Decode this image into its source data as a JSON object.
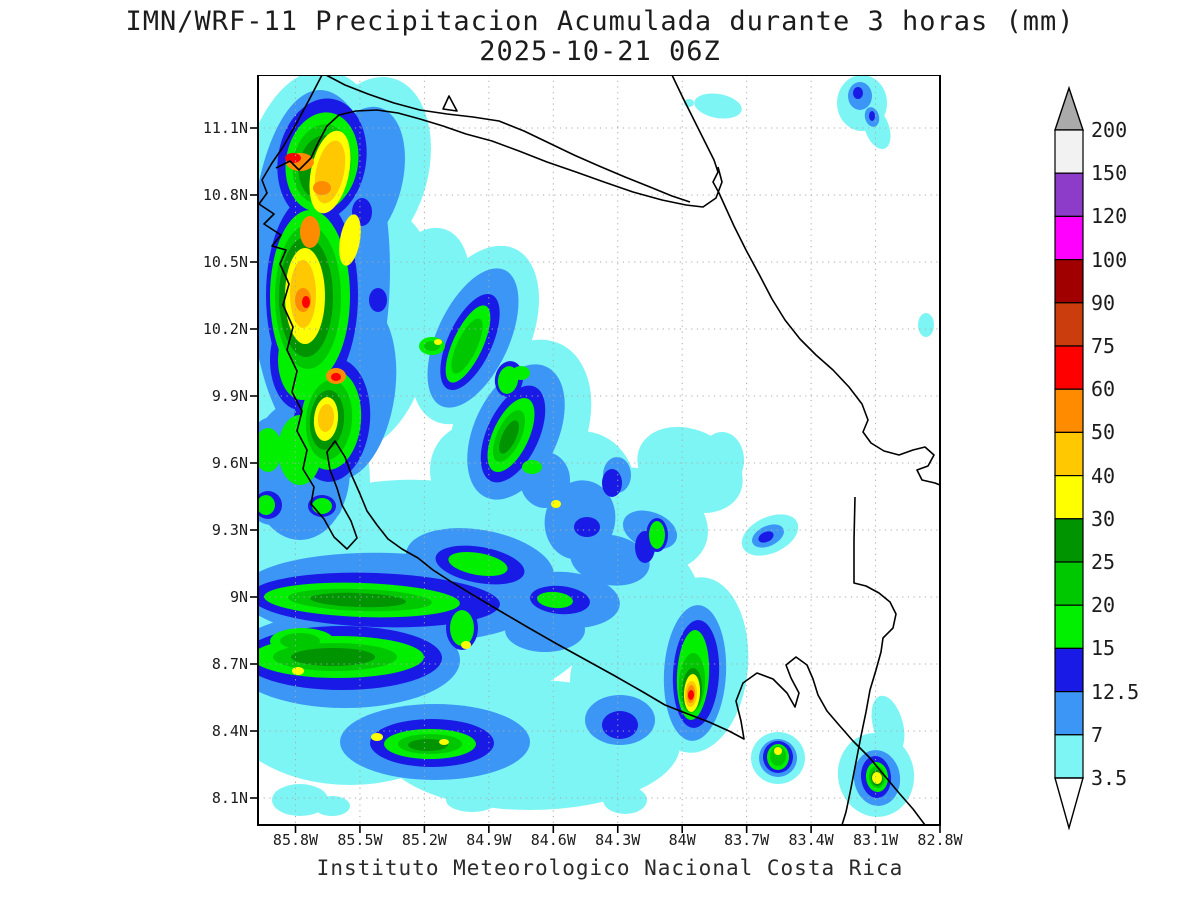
{
  "title": {
    "line1": "IMN/WRF-11 Precipitacion Acumulada durante 3 horas (mm)",
    "line2": "2025-10-21 06Z"
  },
  "footer": "Instituto Meteorologico Nacional Costa Rica",
  "axes": {
    "lat_ticks": [
      "11.1N",
      "10.8N",
      "10.5N",
      "10.2N",
      "9.9N",
      "9.6N",
      "9.3N",
      "9N",
      "8.7N",
      "8.4N",
      "8.1N"
    ],
    "lon_ticks": [
      "85.8W",
      "85.5W",
      "85.2W",
      "84.9W",
      "84.6W",
      "84.3W",
      "84W",
      "83.7W",
      "83.4W",
      "83.1W",
      "82.8W"
    ]
  },
  "colorbar": {
    "labels": [
      "200",
      "150",
      "120",
      "100",
      "90",
      "75",
      "60",
      "50",
      "40",
      "30",
      "25",
      "20",
      "15",
      "12.5",
      "7",
      "3.5"
    ],
    "cell_colors": [
      "#F2F2F2",
      "#8C3CC8",
      "#FF00FF",
      "#A00000",
      "#CC3D0E",
      "#FF0000",
      "#FF8C00",
      "#FFC800",
      "#FFFF00",
      "#009400",
      "#00C800",
      "#00F000",
      "#1A1AE6",
      "#3C96F5",
      "#7DF5F5"
    ],
    "arrow_top_color": "#AAAAAA",
    "arrow_bottom_color": "#FFFFFF",
    "units": "mm"
  },
  "map": {
    "background": "#FFFFFF",
    "coast_color": "#000000",
    "grid_color": "#AAAAAA",
    "palette_order": [
      "p3_5",
      "p7",
      "p12_5",
      "p15",
      "p20",
      "p25",
      "p30",
      "p40",
      "p50",
      "p60"
    ],
    "palette": {
      "p3_5": "#7DF5F5",
      "p7": "#3C96F5",
      "p12_5": "#1A1AE6",
      "p15": "#00F000",
      "p20": "#00C800",
      "p25": "#009400",
      "p30": "#FFFF00",
      "p40": "#FFC800",
      "p50": "#FF8C00",
      "p60": "#FF0000"
    },
    "coastlines": [
      "M 322,75 L 309,100 L 295,126 L 283,147 L 272,163 L 262,180 L 267,193 L 259,204 L 274,214 L 264,224 L 281,235 L 272,246 L 286,250 L 280,264 L 289,284 L 283,305 L 293,327 L 287,350 L 297,371 L 292,392 L 302,411 L 297,431 L 307,450 L 303,469 L 314,487 L 311,504 L 324,519 L 334,537 L 347,549 L 357,538 L 351,521 L 342,505 L 337,488 L 330,470 L 327,452 L 335,441 L 345,457 L 352,476 L 360,494 L 367,511 L 377,525 L 388,539 L 402,549 L 418,558 L 433,570 L 450,581 L 473,595 L 500,611 L 529,628 L 557,644 L 586,660 L 615,676 L 643,692 L 665,705 L 688,714 L 709,722 L 729,731 L 744,739 L 741,721 L 736,701 L 743,683 L 757,673 L 773,679 L 787,693 L 795,707 L 799,693 L 791,678 L 786,665 L 796,657 L 807,665 L 813,679 L 818,695 L 827,711 L 839,725 L 853,741 L 869,757 L 884,775 L 899,793 L 913,809 L 925,825",
      "M 276,168 L 290,161 L 299,170 L 311,158 L 318,143 L 327,126 L 339,115 L 356,111 L 377,110 L 398,113 L 420,119 L 443,126 L 466,134 L 492,141 L 519,151 L 547,162 L 576,172 L 604,182 L 633,192 L 662,200 L 686,205 L 703,207 L 716,198 L 722,182 L 718,167",
      "M 326,75 L 345,85 L 368,94 L 394,103 L 420,110 L 447,114 L 473,117 L 499,121 L 524,131 L 549,143 L 574,155 L 599,166 L 625,177 L 650,187 L 672,196 L 690,202",
      "M 672,75 L 683,98 L 695,122 L 706,144 L 714,160 L 718,172 L 713,182 L 719,193 L 724,204 L 734,226 L 746,250 L 760,276 L 772,299 L 785,320 L 800,339 L 816,355 L 833,370 L 849,387 L 862,404 L 868,420 L 863,432 L 871,443 L 884,451 L 899,455 L 913,450 L 925,447 L 934,455 L 928,466 L 917,470 L 922,480 L 935,483 L 940,485",
      "M 855,497 L 854,540 L 854,583 L 866,586 L 879,593 L 890,602 L 896,614 L 893,628 L 883,638 L 881,652 L 876,670 L 870,690 L 866,712 L 861,736 L 856,762 L 851,788 L 846,812 L 842,825",
      "M 449,96 L 457,111 L 443,109 Z"
    ],
    "blobs": [
      [
        "p3_5",
        322,
        265,
        92,
        195,
        0
      ],
      [
        "p3_5",
        368,
        170,
        60,
        95,
        15
      ],
      [
        "p3_5",
        372,
        330,
        62,
        120,
        10
      ],
      [
        "p3_5",
        300,
        480,
        70,
        90,
        0
      ],
      [
        "p3_5",
        420,
        300,
        45,
        75,
        20
      ],
      [
        "p3_5",
        475,
        335,
        55,
        95,
        25
      ],
      [
        "p3_5",
        520,
        430,
        65,
        95,
        25
      ],
      [
        "p3_5",
        575,
        500,
        60,
        70,
        20
      ],
      [
        "p3_5",
        470,
        470,
        40,
        45,
        0
      ],
      [
        "p3_5",
        722,
        460,
        22,
        28,
        0
      ],
      [
        "p3_5",
        420,
        595,
        185,
        115,
        3
      ],
      [
        "p3_5",
        350,
        700,
        130,
        85,
        0
      ],
      [
        "p3_5",
        560,
        570,
        100,
        70,
        10
      ],
      [
        "p3_5",
        640,
        520,
        70,
        50,
        20
      ],
      [
        "p3_5",
        690,
        470,
        55,
        40,
        25
      ],
      [
        "p3_5",
        530,
        745,
        150,
        65,
        0
      ],
      [
        "p3_5",
        640,
        680,
        70,
        60,
        0
      ],
      [
        "p3_5",
        625,
        800,
        22,
        14,
        0
      ],
      [
        "p3_5",
        300,
        800,
        28,
        16,
        0
      ],
      [
        "p3_5",
        332,
        806,
        18,
        10,
        0
      ],
      [
        "p3_5",
        472,
        800,
        26,
        12,
        0
      ],
      [
        "p3_5",
        520,
        795,
        30,
        14,
        0
      ],
      [
        "p3_5",
        696,
        665,
        52,
        88,
        5
      ],
      [
        "p3_5",
        655,
        600,
        45,
        55,
        -10
      ],
      [
        "p3_5",
        778,
        758,
        27,
        26,
        0
      ],
      [
        "p3_5",
        876,
        775,
        38,
        42,
        -10
      ],
      [
        "p3_5",
        888,
        725,
        15,
        30,
        -15
      ],
      [
        "p3_5",
        770,
        535,
        30,
        18,
        -25
      ],
      [
        "p3_5",
        718,
        106,
        24,
        12,
        10
      ],
      [
        "p3_5",
        689,
        103,
        5,
        4,
        0
      ],
      [
        "p3_5",
        862,
        103,
        25,
        28,
        0
      ],
      [
        "p3_5",
        877,
        128,
        12,
        22,
        -20
      ],
      [
        "p3_5",
        926,
        325,
        8,
        12,
        0
      ],
      [
        "p3_5",
        280,
        505,
        40,
        30,
        0
      ],
      [
        "p7",
        320,
        270,
        70,
        180,
        0
      ],
      [
        "p7",
        360,
        180,
        42,
        75,
        15
      ],
      [
        "p7",
        350,
        390,
        45,
        90,
        8
      ],
      [
        "p7",
        300,
        470,
        50,
        70,
        0
      ],
      [
        "p7",
        473,
        338,
        36,
        75,
        25
      ],
      [
        "p7",
        516,
        432,
        42,
        72,
        25
      ],
      [
        "p7",
        580,
        520,
        35,
        40,
        15
      ],
      [
        "p7",
        545,
        480,
        25,
        28,
        0
      ],
      [
        "p7",
        617,
        475,
        14,
        18,
        0
      ],
      [
        "p7",
        390,
        598,
        150,
        45,
        2
      ],
      [
        "p7",
        345,
        660,
        115,
        48,
        0
      ],
      [
        "p7",
        480,
        565,
        75,
        35,
        10
      ],
      [
        "p7",
        565,
        600,
        55,
        28,
        5
      ],
      [
        "p7",
        435,
        742,
        95,
        38,
        0
      ],
      [
        "p7",
        610,
        560,
        40,
        25,
        10
      ],
      [
        "p7",
        650,
        530,
        28,
        18,
        20
      ],
      [
        "p7",
        545,
        630,
        40,
        22,
        0
      ],
      [
        "p7",
        620,
        720,
        35,
        25,
        0
      ],
      [
        "p7",
        695,
        673,
        31,
        68,
        3
      ],
      [
        "p7",
        778,
        758,
        19,
        19,
        0
      ],
      [
        "p7",
        877,
        778,
        23,
        28,
        -8
      ],
      [
        "p7",
        768,
        536,
        17,
        10,
        -25
      ],
      [
        "p7",
        860,
        96,
        12,
        14,
        0
      ],
      [
        "p7",
        872,
        117,
        7,
        10,
        -15
      ],
      [
        "p7",
        272,
        505,
        22,
        20,
        0
      ],
      [
        "p7",
        322,
        506,
        20,
        16,
        0
      ],
      [
        "p7",
        272,
        452,
        25,
        35,
        0
      ],
      [
        "p12_5",
        322,
        160,
        44,
        62,
        10
      ],
      [
        "p12_5",
        312,
        295,
        46,
        100,
        0
      ],
      [
        "p12_5",
        332,
        420,
        38,
        62,
        5
      ],
      [
        "p12_5",
        300,
        360,
        30,
        50,
        0
      ],
      [
        "p12_5",
        362,
        212,
        10,
        14,
        0
      ],
      [
        "p12_5",
        378,
        300,
        9,
        12,
        0
      ],
      [
        "p12_5",
        347,
        440,
        8,
        10,
        0
      ],
      [
        "p12_5",
        322,
        218,
        9,
        8,
        0
      ],
      [
        "p12_5",
        470,
        342,
        22,
        52,
        25
      ],
      [
        "p12_5",
        513,
        434,
        26,
        52,
        25
      ],
      [
        "p12_5",
        509,
        379,
        14,
        18,
        10
      ],
      [
        "p12_5",
        587,
        527,
        13,
        10,
        0
      ],
      [
        "p12_5",
        645,
        547,
        10,
        16,
        0
      ],
      [
        "p12_5",
        612,
        483,
        10,
        14,
        0
      ],
      [
        "p12_5",
        657,
        535,
        11,
        17,
        0
      ],
      [
        "p12_5",
        375,
        600,
        125,
        27,
        2
      ],
      [
        "p12_5",
        342,
        658,
        100,
        32,
        0
      ],
      [
        "p12_5",
        480,
        565,
        45,
        18,
        10
      ],
      [
        "p12_5",
        432,
        743,
        62,
        24,
        0
      ],
      [
        "p12_5",
        560,
        600,
        30,
        14,
        5
      ],
      [
        "p12_5",
        620,
        725,
        18,
        14,
        0
      ],
      [
        "p12_5",
        462,
        628,
        16,
        22,
        0
      ],
      [
        "p12_5",
        696,
        674,
        23,
        54,
        3
      ],
      [
        "p12_5",
        778,
        757,
        15,
        16,
        0
      ],
      [
        "p12_5",
        876,
        777,
        15,
        21,
        -5
      ],
      [
        "p12_5",
        766,
        537,
        8,
        5,
        -25
      ],
      [
        "p12_5",
        858,
        93,
        5,
        6,
        0
      ],
      [
        "p12_5",
        872,
        116,
        3,
        5,
        0
      ],
      [
        "p12_5",
        268,
        505,
        14,
        14,
        0
      ],
      [
        "p12_5",
        322,
        506,
        14,
        11,
        0
      ],
      [
        "p15",
        322,
        162,
        36,
        50,
        10
      ],
      [
        "p15",
        310,
        296,
        40,
        86,
        0
      ],
      [
        "p15",
        331,
        420,
        30,
        50,
        5
      ],
      [
        "p15",
        302,
        360,
        24,
        40,
        0
      ],
      [
        "p15",
        300,
        450,
        22,
        35,
        0
      ],
      [
        "p15",
        268,
        450,
        14,
        22,
        0
      ],
      [
        "p15",
        468,
        344,
        15,
        42,
        25
      ],
      [
        "p15",
        511,
        435,
        18,
        40,
        25
      ],
      [
        "p15",
        508,
        380,
        10,
        14,
        10
      ],
      [
        "p15",
        432,
        346,
        13,
        9,
        0
      ],
      [
        "p15",
        521,
        373,
        9,
        7,
        0
      ],
      [
        "p15",
        532,
        467,
        10,
        7,
        0
      ],
      [
        "p15",
        657,
        535,
        8,
        14,
        0
      ],
      [
        "p15",
        362,
        600,
        98,
        17,
        2
      ],
      [
        "p15",
        338,
        657,
        86,
        21,
        0
      ],
      [
        "p15",
        478,
        564,
        30,
        11,
        10
      ],
      [
        "p15",
        430,
        744,
        46,
        15,
        0
      ],
      [
        "p15",
        302,
        641,
        32,
        13,
        0
      ],
      [
        "p15",
        555,
        600,
        18,
        8,
        5
      ],
      [
        "p15",
        462,
        628,
        12,
        18,
        0
      ],
      [
        "p15",
        693,
        675,
        16,
        45,
        3
      ],
      [
        "p15",
        778,
        757,
        11,
        13,
        0
      ],
      [
        "p15",
        877,
        777,
        11,
        15,
        -5
      ],
      [
        "p15",
        266,
        505,
        9,
        10,
        0
      ],
      [
        "p15",
        322,
        506,
        10,
        8,
        0
      ],
      [
        "p20",
        322,
        164,
        29,
        40,
        10
      ],
      [
        "p20",
        308,
        297,
        33,
        72,
        0
      ],
      [
        "p20",
        329,
        420,
        23,
        40,
        5
      ],
      [
        "p20",
        467,
        346,
        10,
        30,
        25
      ],
      [
        "p20",
        509,
        436,
        12,
        28,
        25
      ],
      [
        "p20",
        432,
        346,
        8,
        5,
        0
      ],
      [
        "p20",
        360,
        600,
        72,
        11,
        2
      ],
      [
        "p20",
        335,
        657,
        62,
        14,
        0
      ],
      [
        "p20",
        430,
        744,
        32,
        10,
        0
      ],
      [
        "p20",
        300,
        641,
        20,
        8,
        0
      ],
      [
        "p20",
        692,
        683,
        13,
        30,
        3
      ],
      [
        "p20",
        778,
        756,
        8,
        10,
        0
      ],
      [
        "p20",
        877,
        777,
        8,
        11,
        -5
      ],
      [
        "p25",
        322,
        167,
        23,
        32,
        10
      ],
      [
        "p25",
        306,
        297,
        27,
        60,
        0
      ],
      [
        "p25",
        327,
        420,
        17,
        30,
        5
      ],
      [
        "p25",
        509,
        437,
        7,
        18,
        25
      ],
      [
        "p25",
        358,
        600,
        48,
        7,
        2
      ],
      [
        "p25",
        333,
        657,
        42,
        9,
        0
      ],
      [
        "p25",
        428,
        745,
        20,
        6,
        0
      ],
      [
        "p25",
        692,
        690,
        10,
        22,
        3
      ],
      [
        "p25",
        877,
        778,
        6,
        8,
        -5
      ],
      [
        "p30",
        330,
        172,
        19,
        42,
        12
      ],
      [
        "p30",
        305,
        296,
        20,
        48,
        0
      ],
      [
        "p30",
        326,
        419,
        12,
        22,
        5
      ],
      [
        "p30",
        350,
        240,
        10,
        26,
        10
      ],
      [
        "p30",
        438,
        342,
        4,
        3,
        0
      ],
      [
        "p30",
        556,
        504,
        5,
        4,
        0
      ],
      [
        "p30",
        298,
        671,
        6,
        4,
        0
      ],
      [
        "p30",
        377,
        737,
        6,
        4,
        0
      ],
      [
        "p30",
        444,
        742,
        5,
        3,
        0
      ],
      [
        "p30",
        466,
        645,
        5,
        4,
        0
      ],
      [
        "p30",
        692,
        693,
        8,
        19,
        3
      ],
      [
        "p30",
        778,
        751,
        4,
        4,
        0
      ],
      [
        "p30",
        877,
        778,
        5,
        6,
        -5
      ],
      [
        "p40",
        330,
        172,
        14,
        32,
        12
      ],
      [
        "p40",
        303,
        294,
        13,
        34,
        0
      ],
      [
        "p40",
        326,
        418,
        8,
        14,
        5
      ],
      [
        "p40",
        691,
        694,
        6,
        13,
        3
      ],
      [
        "p50",
        300,
        162,
        14,
        9,
        0
      ],
      [
        "p50",
        322,
        188,
        9,
        7,
        0
      ],
      [
        "p50",
        310,
        232,
        10,
        16,
        0
      ],
      [
        "p50",
        303,
        300,
        8,
        12,
        0
      ],
      [
        "p50",
        336,
        376,
        10,
        8,
        0
      ],
      [
        "p50",
        691,
        694,
        4,
        9,
        3
      ],
      [
        "p60",
        293,
        158,
        8,
        5,
        0
      ],
      [
        "p60",
        336,
        377,
        5,
        4,
        0
      ],
      [
        "p60",
        306,
        302,
        4,
        6,
        0
      ],
      [
        "p60",
        691,
        695,
        3,
        5,
        3
      ]
    ]
  }
}
